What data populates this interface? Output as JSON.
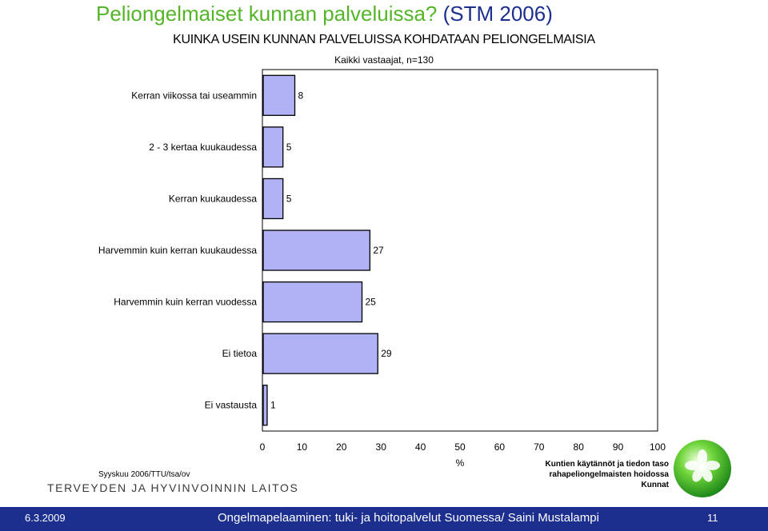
{
  "slide": {
    "title_part1": "Peliongelmaiset kunnan palveluissa?",
    "title_part2": " (STM 2006)"
  },
  "chart_data": {
    "type": "bar",
    "orientation": "horizontal",
    "title": "KUINKA USEIN KUNNAN PALVELUISSA KOHDATAAN PELIONGELMAISIA",
    "subtitle": "Kaikki vastaajat, n=130",
    "categories": [
      "Kerran viikossa tai useammin",
      "2 - 3 kertaa kuukaudessa",
      "Kerran kuukaudessa",
      "Harvemmin kuin kerran kuukaudessa",
      "Harvemmin kuin kerran vuodessa",
      "Ei tietoa",
      "Ei vastausta"
    ],
    "values": [
      8,
      5,
      5,
      27,
      25,
      29,
      1
    ],
    "xlabel": "%",
    "xlim": [
      0,
      100
    ],
    "xticks": [
      0,
      10,
      20,
      30,
      40,
      50,
      60,
      70,
      80,
      90,
      100
    ],
    "grid": false,
    "legend": "none",
    "data_labels": true,
    "bar_color": "#b0b2f5",
    "bar_border": "#000000"
  },
  "notes": {
    "source": "Syyskuu 2006/TTU/tsa/ov",
    "right_line1": "Kuntien käytännöt ja tiedon taso",
    "right_line2": "rahapeliongelmaisten hoidossa",
    "right_line3": "Kunnat"
  },
  "org_name": "TERVEYDEN JA HYVINVOINNIN LAITOS",
  "logo_icon": "green-globe-flower-icon",
  "footer": {
    "date": "6.3.2009",
    "title": "Ongelmapelaaminen: tuki- ja hoitopalvelut Suomessa/ Saini Mustalampi",
    "page": "11",
    "background": "#1c2f8e"
  },
  "colors": {
    "title_green": "#55b528",
    "title_blue": "#1c2f8e"
  }
}
